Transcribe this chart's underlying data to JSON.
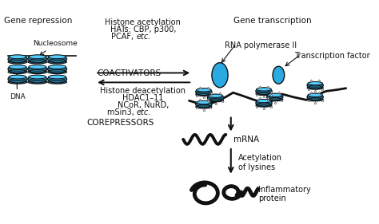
{
  "bg_color": "#ffffff",
  "cyan": "#29ABE2",
  "cyan_light": "#55CCFF",
  "cyan_dark": "#1a7aaa",
  "outline": "#111111",
  "figsize": [
    4.74,
    2.81
  ],
  "dpi": 100,
  "labels": {
    "gene_repression": "Gene repression",
    "dna": "DNA",
    "nucleosome": "Nucleosome",
    "histone_acetylation": "Histone acetylation",
    "hats": "HATs: CBP, p300,",
    "pcaf": "PCAF, ",
    "pcaf_italic": "etc.",
    "coactivators": "COACTIVATORS",
    "histone_deacetylation": "Histone deacetylation",
    "hdac": "HDAC1–11",
    "ncor": "NCoR, NuRD,",
    "msin3": "mSin3, ",
    "msin3_italic": "etc.",
    "corepressors": "COREPRESSORS",
    "gene_transcription": "Gene transcription",
    "rna_pol": "RNA polymerase II",
    "transcription_factor": "Transcription factor",
    "mrna": "mRNA",
    "acetylation_lysines": "Acetylation\nof lysines",
    "inflammatory_protein": "Inflammatory\nprotein"
  }
}
